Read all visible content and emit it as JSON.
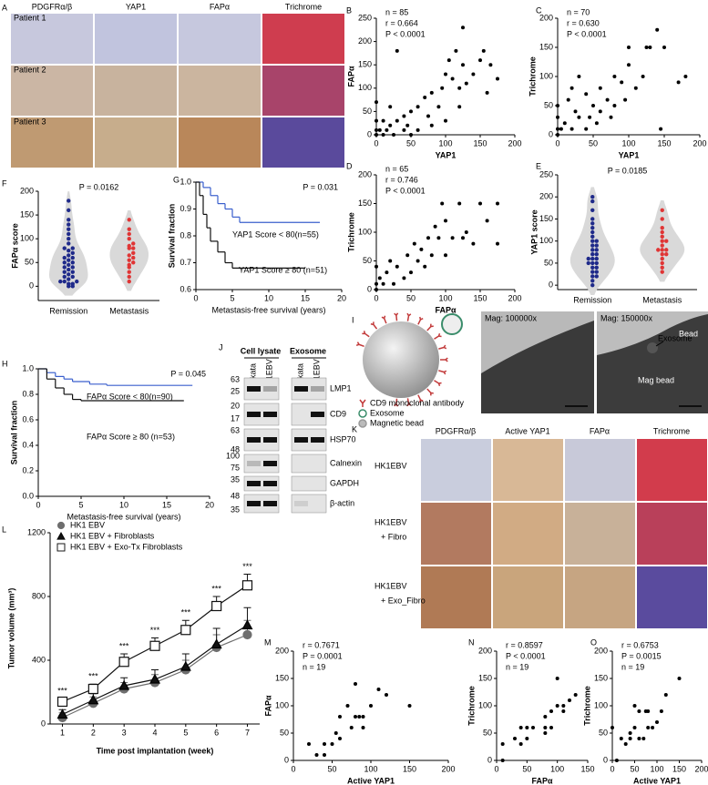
{
  "panels": {
    "A": {
      "letter": "A",
      "columns": [
        "PDGFRα/β",
        "YAP1",
        "FAPα",
        "Trichrome"
      ],
      "rows": [
        "Patient 1",
        "Patient 2",
        "Patient 3"
      ]
    },
    "B": {
      "letter": "B",
      "type": "scatter",
      "xlabel": "YAP1",
      "ylabel": "FAPα",
      "stats": [
        "n = 85",
        "r = 0.664",
        "P < 0.0001"
      ],
      "xlim": [
        0,
        200
      ],
      "ylim": [
        0,
        250
      ],
      "xticks": [
        0,
        50,
        100,
        150,
        200
      ],
      "yticks": [
        0,
        50,
        100,
        150,
        200,
        250
      ],
      "x": [
        0,
        0,
        0,
        0,
        5,
        10,
        10,
        15,
        20,
        20,
        25,
        30,
        30,
        40,
        40,
        45,
        50,
        50,
        60,
        60,
        70,
        75,
        80,
        80,
        90,
        95,
        100,
        100,
        105,
        110,
        115,
        120,
        120,
        125,
        130,
        140,
        150,
        155,
        160,
        165,
        175,
        125
      ],
      "y": [
        0,
        10,
        30,
        70,
        10,
        0,
        30,
        10,
        20,
        60,
        0,
        30,
        180,
        10,
        40,
        20,
        0,
        50,
        10,
        60,
        80,
        40,
        20,
        90,
        60,
        100,
        30,
        130,
        160,
        120,
        180,
        60,
        100,
        150,
        110,
        130,
        160,
        180,
        90,
        150,
        120,
        230
      ]
    },
    "C": {
      "letter": "C",
      "type": "scatter",
      "xlabel": "YAP1",
      "ylabel": "Trichrome",
      "stats": [
        "n = 70",
        "r = 0.630",
        "P < 0.0001"
      ],
      "xlim": [
        0,
        200
      ],
      "ylim": [
        0,
        200
      ],
      "xticks": [
        0,
        50,
        100,
        150,
        200
      ],
      "yticks": [
        0,
        50,
        100,
        150,
        200
      ],
      "x": [
        0,
        0,
        0,
        0,
        5,
        10,
        15,
        20,
        20,
        25,
        30,
        30,
        40,
        40,
        45,
        50,
        55,
        60,
        60,
        70,
        75,
        80,
        80,
        90,
        95,
        100,
        100,
        110,
        120,
        125,
        130,
        140,
        145,
        150,
        170,
        180
      ],
      "y": [
        0,
        10,
        30,
        50,
        10,
        20,
        60,
        10,
        80,
        40,
        30,
        100,
        10,
        70,
        30,
        50,
        20,
        80,
        40,
        60,
        30,
        100,
        50,
        90,
        60,
        120,
        150,
        80,
        100,
        150,
        150,
        180,
        10,
        150,
        90,
        100
      ]
    },
    "D": {
      "letter": "D",
      "type": "scatter",
      "xlabel": "FAPα",
      "ylabel": "Trichrome",
      "stats": [
        "n = 65",
        "r = 0.746",
        "P < 0.0001"
      ],
      "xlim": [
        0,
        200
      ],
      "ylim": [
        0,
        200
      ],
      "xticks": [
        0,
        50,
        100,
        150,
        200
      ],
      "yticks": [
        0,
        50,
        100,
        150,
        200
      ],
      "x": [
        0,
        0,
        0,
        5,
        10,
        15,
        20,
        25,
        30,
        40,
        45,
        50,
        55,
        60,
        65,
        70,
        75,
        80,
        85,
        90,
        95,
        100,
        100,
        110,
        120,
        125,
        130,
        140,
        150,
        160,
        175,
        175
      ],
      "y": [
        0,
        10,
        40,
        20,
        10,
        30,
        50,
        10,
        40,
        20,
        60,
        30,
        80,
        50,
        70,
        40,
        90,
        60,
        110,
        90,
        150,
        120,
        60,
        90,
        150,
        90,
        100,
        80,
        150,
        120,
        150,
        80
      ]
    },
    "E": {
      "letter": "E",
      "type": "violin",
      "ylabel": "YAP1 score",
      "stat": "P = 0.0185",
      "ylim": [
        -10,
        250
      ],
      "yticks": [
        0,
        50,
        100,
        150,
        200,
        250
      ],
      "groups": [
        {
          "name": "Remission",
          "color": "#1f2a8a",
          "values": [
            0,
            10,
            20,
            20,
            30,
            30,
            40,
            40,
            50,
            50,
            50,
            60,
            60,
            60,
            70,
            70,
            80,
            80,
            90,
            90,
            100,
            100,
            110,
            120,
            130,
            140,
            150,
            170,
            190,
            200
          ]
        },
        {
          "name": "Metastasis",
          "color": "#e03535",
          "values": [
            30,
            40,
            50,
            60,
            70,
            70,
            80,
            80,
            80,
            90,
            100,
            100,
            110,
            120,
            130,
            150,
            170
          ]
        }
      ]
    },
    "F": {
      "letter": "F",
      "type": "violin",
      "ylabel": "FAPα score",
      "stat": "P = 0.0162",
      "ylim": [
        -30,
        200
      ],
      "yticks": [
        0,
        50,
        100,
        150,
        200
      ],
      "groups": [
        {
          "name": "Remission",
          "color": "#1f2a8a",
          "values": [
            0,
            0,
            5,
            5,
            10,
            10,
            10,
            15,
            20,
            20,
            25,
            30,
            30,
            35,
            40,
            40,
            45,
            50,
            50,
            55,
            60,
            60,
            65,
            70,
            75,
            80,
            80,
            90,
            100,
            110,
            120,
            130,
            140,
            160,
            180
          ]
        },
        {
          "name": "Metastasis",
          "color": "#e03535",
          "values": [
            10,
            20,
            30,
            40,
            45,
            50,
            55,
            60,
            65,
            70,
            80,
            80,
            85,
            90,
            100,
            110,
            120,
            140
          ]
        }
      ]
    },
    "G": {
      "letter": "G",
      "type": "survival",
      "xlabel": "Metastasis-free survival (years)",
      "ylabel": "Survival fraction",
      "stat": "P = 0.031",
      "xlim": [
        0,
        20
      ],
      "ylim": [
        0.6,
        1.0
      ],
      "xticks": [
        0,
        5,
        10,
        15,
        20
      ],
      "yticks": [
        0.6,
        0.7,
        0.8,
        0.9,
        {
          "value": 1,
          "label": "1.0"
        }
      ],
      "series": [
        {
          "name": "YAP1 Score < 80(n=55)",
          "color": "#3a5fcd",
          "x": [
            0,
            1,
            2,
            3,
            4,
            5,
            6,
            17
          ],
          "values": [
            1,
            0.98,
            0.95,
            0.92,
            0.9,
            0.87,
            0.85,
            0.85
          ]
        },
        {
          "name": "YAP1 Score ≥ 80 (n=51)",
          "color": "#111111",
          "x": [
            0,
            0.5,
            1,
            1.5,
            2,
            3,
            4,
            5,
            15
          ],
          "values": [
            1,
            0.95,
            0.88,
            0.83,
            0.78,
            0.74,
            0.7,
            0.68,
            0.68
          ]
        }
      ]
    },
    "H": {
      "letter": "H",
      "type": "survival",
      "xlabel": "Metastasis-free survival (years)",
      "ylabel": "Survival fraction",
      "stat": "P = 0.045",
      "xlim": [
        0,
        20
      ],
      "ylim": [
        0,
        1.0
      ],
      "xticks": [
        0,
        5,
        10,
        15,
        20
      ],
      "yticks": [
        {
          "value": 0,
          "label": "0.0"
        },
        0.2,
        0.4,
        0.6,
        0.8,
        {
          "value": 1,
          "label": "1.0"
        }
      ],
      "series": [
        {
          "name": "FAPα Score < 80(n=90)",
          "color": "#3a5fcd",
          "x": [
            0,
            1,
            2,
            3,
            4,
            6,
            8,
            18
          ],
          "values": [
            1,
            0.97,
            0.94,
            0.92,
            0.9,
            0.88,
            0.87,
            0.87
          ]
        },
        {
          "name": "FAPα Score ≥ 80 (n=53)",
          "color": "#111111",
          "x": [
            0,
            1,
            2,
            3,
            4,
            5,
            17
          ],
          "values": [
            1,
            0.92,
            0.85,
            0.8,
            0.76,
            0.75,
            0.75
          ]
        }
      ]
    },
    "I": {
      "letter": "I",
      "legend": [
        "CD9 monoclonal antibody",
        "Exosome",
        "Magnetic bead"
      ],
      "images": [
        "Mag: 100000x",
        "Mag: 150000x"
      ],
      "callouts": [
        "Exosome",
        "Bead",
        "Mag bead"
      ]
    },
    "J": {
      "letter": "J",
      "groups": [
        "Cell lysate",
        "Exosome"
      ],
      "lanes": [
        "rAkata",
        "HK1EBV"
      ],
      "proteins": [
        "LMP1",
        "CD9",
        "HSP70",
        "Calnexin",
        "GAPDH",
        "β-actin"
      ],
      "markers": [
        "63",
        "25",
        "20",
        "17",
        "63",
        "48",
        "100",
        "75",
        "35",
        "48",
        "35"
      ]
    },
    "K": {
      "letter": "K",
      "columns": [
        "PDGFRα/β",
        "Active YAP1",
        "FAPα",
        "Trichrome"
      ],
      "rows": [
        [
          "HK1EBV"
        ],
        [
          "HK1EBV",
          "+ Fibro"
        ],
        [
          "HK1EBV",
          "+ Exo_Fibro"
        ]
      ]
    },
    "L": {
      "letter": "L",
      "type": "line",
      "xlabel": "Time post implantation (week)",
      "ylabel": "Tumor volume (mm³)",
      "legend": "upper left",
      "xlim": [
        0.6,
        7.4
      ],
      "ylim": [
        0,
        1200
      ],
      "xticks": [
        1,
        2,
        3,
        4,
        5,
        6,
        7
      ],
      "yticks": [
        0,
        400,
        800,
        1200
      ],
      "x": [
        1,
        2,
        3,
        4,
        5,
        6,
        7
      ],
      "series": [
        {
          "name": "HK1 EBV",
          "marker": "circle",
          "color": "#6e6e6e",
          "values": [
            40,
            130,
            220,
            260,
            340,
            480,
            560
          ],
          "errors": [
            30,
            40,
            40,
            50,
            60,
            80,
            90
          ]
        },
        {
          "name": "HK1 EBV + Fibroblasts",
          "marker": "triangle",
          "color": "#111111",
          "values": [
            60,
            150,
            240,
            280,
            360,
            500,
            620
          ],
          "errors": [
            30,
            40,
            50,
            60,
            80,
            100,
            110
          ]
        },
        {
          "name": "HK1 EBV + Exo-Tx Fibroblasts",
          "marker": "square",
          "color": "#111111",
          "values": [
            140,
            220,
            390,
            490,
            590,
            740,
            870
          ],
          "errors": [
            20,
            30,
            50,
            50,
            60,
            60,
            70
          ]
        }
      ],
      "significance": [
        "***",
        "***",
        "***",
        "***",
        "***",
        "***",
        "***"
      ]
    },
    "M": {
      "letter": "M",
      "type": "scatter",
      "xlabel": "Active YAP1",
      "ylabel": "FAPα",
      "stats": [
        "r = 0.7671",
        "P = 0.0001",
        "n = 19"
      ],
      "xlim": [
        0,
        200
      ],
      "ylim": [
        0,
        200
      ],
      "xticks": [
        0,
        50,
        100,
        150,
        200
      ],
      "yticks": [
        0,
        50,
        100,
        150,
        200
      ],
      "x": [
        20,
        30,
        40,
        40,
        50,
        55,
        60,
        60,
        70,
        75,
        80,
        85,
        90,
        90,
        100,
        110,
        120,
        150,
        80
      ],
      "y": [
        30,
        10,
        10,
        30,
        30,
        50,
        80,
        40,
        100,
        60,
        80,
        80,
        80,
        60,
        100,
        130,
        120,
        100,
        140
      ]
    },
    "N": {
      "letter": "N",
      "type": "scatter",
      "xlabel": "FAPα",
      "ylabel": "Trichrome",
      "stats": [
        "r = 0.8597",
        "P < 0.0001",
        "n = 19"
      ],
      "xlim": [
        0,
        150
      ],
      "ylim": [
        0,
        200
      ],
      "xticks": [
        0,
        50,
        100,
        150
      ],
      "yticks": [
        0,
        50,
        100,
        150,
        200
      ],
      "x": [
        10,
        10,
        30,
        40,
        40,
        50,
        50,
        60,
        80,
        80,
        80,
        90,
        100,
        100,
        110,
        110,
        120,
        130,
        90
      ],
      "y": [
        0,
        30,
        40,
        60,
        30,
        40,
        60,
        60,
        60,
        80,
        50,
        90,
        100,
        150,
        90,
        100,
        110,
        120,
        60
      ]
    },
    "O": {
      "letter": "O",
      "type": "scatter",
      "xlabel": "Active YAP1",
      "ylabel": "Trichrome",
      "stats": [
        "r = 0.6753",
        "P = 0.0015",
        "n = 19"
      ],
      "xlim": [
        0,
        200
      ],
      "ylim": [
        0,
        200
      ],
      "xticks": [
        0,
        50,
        100,
        150,
        200
      ],
      "yticks": [
        0,
        50,
        100,
        150,
        200
      ],
      "x": [
        0,
        10,
        20,
        30,
        40,
        40,
        50,
        50,
        60,
        60,
        70,
        75,
        80,
        80,
        90,
        100,
        110,
        120,
        150
      ],
      "y": [
        60,
        0,
        40,
        30,
        40,
        50,
        100,
        60,
        90,
        40,
        40,
        90,
        60,
        90,
        60,
        70,
        90,
        120,
        150
      ]
    }
  }
}
